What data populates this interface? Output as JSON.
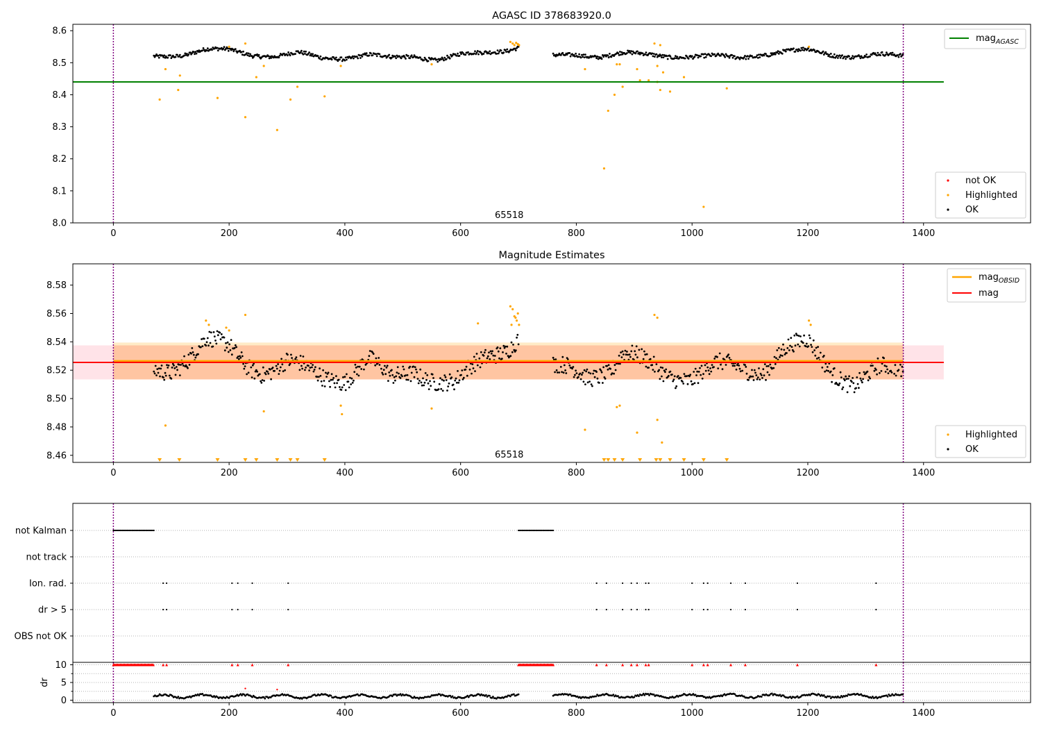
{
  "chart_data": [
    {
      "type": "scatter",
      "title": "AGASC ID 378683920.0",
      "xlim": [
        -70,
        1585
      ],
      "ylim": [
        8.0,
        8.62
      ],
      "xticks": [
        "0",
        "200",
        "400",
        "600",
        "800",
        "1000",
        "1200",
        "1400"
      ],
      "xtick_values": [
        0,
        200,
        400,
        600,
        800,
        1000,
        1200,
        1400
      ],
      "yticks": [
        "8.0",
        "8.1",
        "8.2",
        "8.3",
        "8.4",
        "8.5",
        "8.6"
      ],
      "ytick_values": [
        8.0,
        8.1,
        8.2,
        8.3,
        8.4,
        8.5,
        8.6
      ],
      "vlines": [
        0,
        1365
      ],
      "annotation": "65518",
      "annotation_pos": [
        684,
        8.015
      ],
      "lines": [
        {
          "name": "mag_AGASC",
          "label_main": "mag",
          "label_sub": "AGASC",
          "y": 8.44,
          "x": [
            -70,
            1435
          ],
          "color": "#008000"
        }
      ],
      "legend_lines": {
        "placement": "top-right"
      },
      "legend_points": {
        "placement": "bottom-right",
        "entries": [
          {
            "label": "not OK",
            "color": "#ff0000"
          },
          {
            "label": "Highlighted",
            "color": "#ffa500"
          },
          {
            "label": "OK",
            "color": "#000000"
          }
        ]
      },
      "ok_segments": [
        {
          "x0": 70,
          "x1": 700,
          "knots": [
            [
              70,
              8.52
            ],
            [
              120,
              8.525
            ],
            [
              160,
              8.54
            ],
            [
              200,
              8.54
            ],
            [
              240,
              8.525
            ],
            [
              280,
              8.52
            ],
            [
              320,
              8.53
            ],
            [
              360,
              8.515
            ],
            [
              400,
              8.515
            ],
            [
              440,
              8.525
            ],
            [
              480,
              8.515
            ],
            [
              520,
              8.52
            ],
            [
              560,
              8.51
            ],
            [
              600,
              8.525
            ],
            [
              640,
              8.53
            ],
            [
              680,
              8.54
            ],
            [
              700,
              8.55
            ]
          ],
          "jitter": 0.006,
          "step": 1.5
        },
        {
          "x0": 760,
          "x1": 1365,
          "knots": [
            [
              760,
              8.52
            ],
            [
              800,
              8.525
            ],
            [
              840,
              8.52
            ],
            [
              880,
              8.53
            ],
            [
              920,
              8.525
            ],
            [
              960,
              8.52
            ],
            [
              1000,
              8.52
            ],
            [
              1040,
              8.52
            ],
            [
              1080,
              8.515
            ],
            [
              1120,
              8.525
            ],
            [
              1160,
              8.535
            ],
            [
              1200,
              8.54
            ],
            [
              1240,
              8.525
            ],
            [
              1280,
              8.52
            ],
            [
              1320,
              8.525
            ],
            [
              1365,
              8.52
            ]
          ],
          "jitter": 0.006,
          "step": 1.5
        }
      ],
      "highlighted": [
        [
          80,
          8.385
        ],
        [
          90,
          8.48
        ],
        [
          112,
          8.415
        ],
        [
          115,
          8.46
        ],
        [
          180,
          8.39
        ],
        [
          200,
          8.55
        ],
        [
          228,
          8.33
        ],
        [
          228,
          8.56
        ],
        [
          247,
          8.455
        ],
        [
          260,
          8.49
        ],
        [
          283,
          8.29
        ],
        [
          306,
          8.385
        ],
        [
          318,
          8.425
        ],
        [
          365,
          8.395
        ],
        [
          393,
          8.49
        ],
        [
          550,
          8.495
        ],
        [
          686,
          8.565
        ],
        [
          690,
          8.56
        ],
        [
          693,
          8.555
        ],
        [
          696,
          8.562
        ],
        [
          699,
          8.558
        ],
        [
          701,
          8.555
        ],
        [
          815,
          8.48
        ],
        [
          848,
          8.17
        ],
        [
          855,
          8.35
        ],
        [
          866,
          8.4
        ],
        [
          870,
          8.495
        ],
        [
          875,
          8.495
        ],
        [
          880,
          8.425
        ],
        [
          910,
          8.445
        ],
        [
          905,
          8.48
        ],
        [
          925,
          8.445
        ],
        [
          935,
          8.56
        ],
        [
          940,
          8.44
        ],
        [
          945,
          8.555
        ],
        [
          940,
          8.49
        ],
        [
          945,
          8.415
        ],
        [
          950,
          8.47
        ],
        [
          962,
          8.41
        ],
        [
          986,
          8.455
        ],
        [
          1020,
          8.05
        ],
        [
          1060,
          8.42
        ],
        [
          1202,
          8.55
        ]
      ],
      "not_ok": []
    },
    {
      "type": "scatter",
      "title": "Magnitude Estimates",
      "xlim": [
        -70,
        1585
      ],
      "ylim": [
        8.455,
        8.595
      ],
      "xticks": [
        "0",
        "200",
        "400",
        "600",
        "800",
        "1000",
        "1200",
        "1400"
      ],
      "xtick_values": [
        0,
        200,
        400,
        600,
        800,
        1000,
        1200,
        1400
      ],
      "yticks": [
        "8.46",
        "8.48",
        "8.50",
        "8.52",
        "8.54",
        "8.56",
        "8.58"
      ],
      "ytick_values": [
        8.46,
        8.48,
        8.5,
        8.52,
        8.54,
        8.56,
        8.58
      ],
      "vlines": [
        0,
        1365
      ],
      "annotation": "65518",
      "annotation_pos": [
        684,
        8.4585
      ],
      "bands": [
        {
          "x": [
            -70,
            1435
          ],
          "y": [
            8.5135,
            8.5375
          ],
          "color": "#ffc0cb",
          "opacity": 0.45
        },
        {
          "x": [
            0,
            1365
          ],
          "y": [
            8.5135,
            8.5395
          ],
          "color": "#ffa500",
          "opacity": 0.22
        },
        {
          "x": [
            0,
            1365
          ],
          "y": [
            8.5135,
            8.5375
          ],
          "color": "#ff6030",
          "opacity": 0.14
        }
      ],
      "lines": [
        {
          "name": "mag_OBSID",
          "label_main": "mag",
          "label_sub": "OBSID",
          "y": 8.5265,
          "x": [
            0,
            1365
          ],
          "color": "#ffa500",
          "width": 2.5
        },
        {
          "name": "mag",
          "label_main": "mag",
          "label_sub": "",
          "y": 8.5255,
          "x": [
            -70,
            1435
          ],
          "color": "#ff0000",
          "width": 2
        }
      ],
      "legend_lines": {
        "placement": "top-right"
      },
      "legend_points": {
        "placement": "bottom-right",
        "entries": [
          {
            "label": "Highlighted",
            "color": "#ffa500"
          },
          {
            "label": "OK",
            "color": "#000000"
          }
        ]
      },
      "ok_segments": [
        {
          "x0": 70,
          "x1": 700,
          "knots": [
            [
              70,
              8.52
            ],
            [
              100,
              8.522
            ],
            [
              130,
              8.53
            ],
            [
              160,
              8.54
            ],
            [
              200,
              8.535
            ],
            [
              230,
              8.525
            ],
            [
              260,
              8.52
            ],
            [
              300,
              8.525
            ],
            [
              330,
              8.52
            ],
            [
              360,
              8.515
            ],
            [
              400,
              8.515
            ],
            [
              440,
              8.528
            ],
            [
              480,
              8.512
            ],
            [
              520,
              8.52
            ],
            [
              560,
              8.514
            ],
            [
              590,
              8.51
            ],
            [
              620,
              8.52
            ],
            [
              650,
              8.53
            ],
            [
              680,
              8.537
            ],
            [
              700,
              8.545
            ]
          ],
          "jitter": 0.006,
          "step": 1.5
        },
        {
          "x0": 760,
          "x1": 1365,
          "knots": [
            [
              760,
              8.52
            ],
            [
              790,
              8.522
            ],
            [
              820,
              8.518
            ],
            [
              860,
              8.52
            ],
            [
              880,
              8.53
            ],
            [
              920,
              8.525
            ],
            [
              960,
              8.518
            ],
            [
              1000,
              8.515
            ],
            [
              1040,
              8.522
            ],
            [
              1080,
              8.522
            ],
            [
              1120,
              8.52
            ],
            [
              1160,
              8.535
            ],
            [
              1200,
              8.538
            ],
            [
              1240,
              8.52
            ],
            [
              1280,
              8.512
            ],
            [
              1320,
              8.52
            ],
            [
              1365,
              8.518
            ]
          ],
          "jitter": 0.006,
          "step": 1.5
        }
      ],
      "highlighted": [
        [
          90,
          8.481
        ],
        [
          160,
          8.555
        ],
        [
          165,
          8.552
        ],
        [
          195,
          8.55
        ],
        [
          200,
          8.548
        ],
        [
          228,
          8.559
        ],
        [
          260,
          8.491
        ],
        [
          393,
          8.495
        ],
        [
          395,
          8.489
        ],
        [
          550,
          8.493
        ],
        [
          630,
          8.553
        ],
        [
          686,
          8.565
        ],
        [
          690,
          8.563
        ],
        [
          693,
          8.558
        ],
        [
          695,
          8.557
        ],
        [
          697,
          8.555
        ],
        [
          699,
          8.56
        ],
        [
          701,
          8.552
        ],
        [
          688,
          8.552
        ],
        [
          815,
          8.478
        ],
        [
          870,
          8.494
        ],
        [
          875,
          8.495
        ],
        [
          905,
          8.476
        ],
        [
          935,
          8.559
        ],
        [
          940,
          8.557
        ],
        [
          940,
          8.485
        ],
        [
          948,
          8.469
        ],
        [
          1202,
          8.555
        ],
        [
          1205,
          8.552
        ]
      ],
      "lower_markers": [
        80,
        114,
        180,
        228,
        247,
        283,
        306,
        318,
        365,
        848,
        855,
        866,
        880,
        910,
        938,
        945,
        962,
        986,
        1020,
        1060
      ]
    },
    {
      "type": "scatter",
      "title": "",
      "xlim": [
        -70,
        1585
      ],
      "categories": [
        "not Kalman",
        "not track",
        "Ion. rad.",
        "dr > 5",
        "OBS not OK"
      ],
      "flags": {
        "not Kalman": {
          "ranges": [
            [
              0,
              70
            ],
            [
              700,
              760
            ]
          ],
          "step": 2
        },
        "not track": {
          "ranges": [],
          "step": 2
        },
        "Ion. rad.": {
          "points": [
            86,
            92,
            205,
            215,
            240,
            302,
            835,
            852,
            880,
            895,
            905,
            920,
            925,
            1000,
            1020,
            1027,
            1067,
            1092,
            1182,
            1318
          ]
        },
        "dr > 5": {
          "points": [
            86,
            92,
            205,
            215,
            240,
            302,
            835,
            852,
            880,
            895,
            905,
            920,
            925,
            1000,
            1020,
            1027,
            1067,
            1092,
            1182,
            1318
          ]
        },
        "OBS not OK": {
          "points": []
        }
      },
      "vlines": [
        0,
        1365
      ]
    },
    {
      "type": "scatter",
      "title": "",
      "xlim": [
        -70,
        1585
      ],
      "ylim": [
        -0.5,
        10.5
      ],
      "ylabel": "dr",
      "xticks": [
        "0",
        "200",
        "400",
        "600",
        "800",
        "1000",
        "1200",
        "1400"
      ],
      "xtick_values": [
        0,
        200,
        400,
        600,
        800,
        1000,
        1200,
        1400
      ],
      "yticks": [
        "0",
        "5",
        "10"
      ],
      "ytick_values": [
        0,
        5,
        10
      ],
      "vlines": [
        0,
        1365
      ],
      "capped": {
        "y": 10,
        "ranges": [
          [
            0,
            70
          ],
          [
            700,
            760
          ]
        ],
        "points": [
          86,
          92,
          205,
          215,
          240,
          302,
          835,
          852,
          880,
          895,
          905,
          920,
          925,
          1000,
          1020,
          1027,
          1067,
          1092,
          1182,
          1318
        ],
        "color": "#ff0000"
      },
      "red_points": [
        [
          228,
          3.3
        ],
        [
          283,
          3.0
        ]
      ],
      "ok_segments": [
        {
          "x0": 70,
          "x1": 700,
          "base": 1.1,
          "amp": 0.45,
          "period": 34,
          "step": 2
        },
        {
          "x0": 760,
          "x1": 1365,
          "base": 1.2,
          "amp": 0.45,
          "period": 36,
          "step": 2
        }
      ]
    }
  ]
}
